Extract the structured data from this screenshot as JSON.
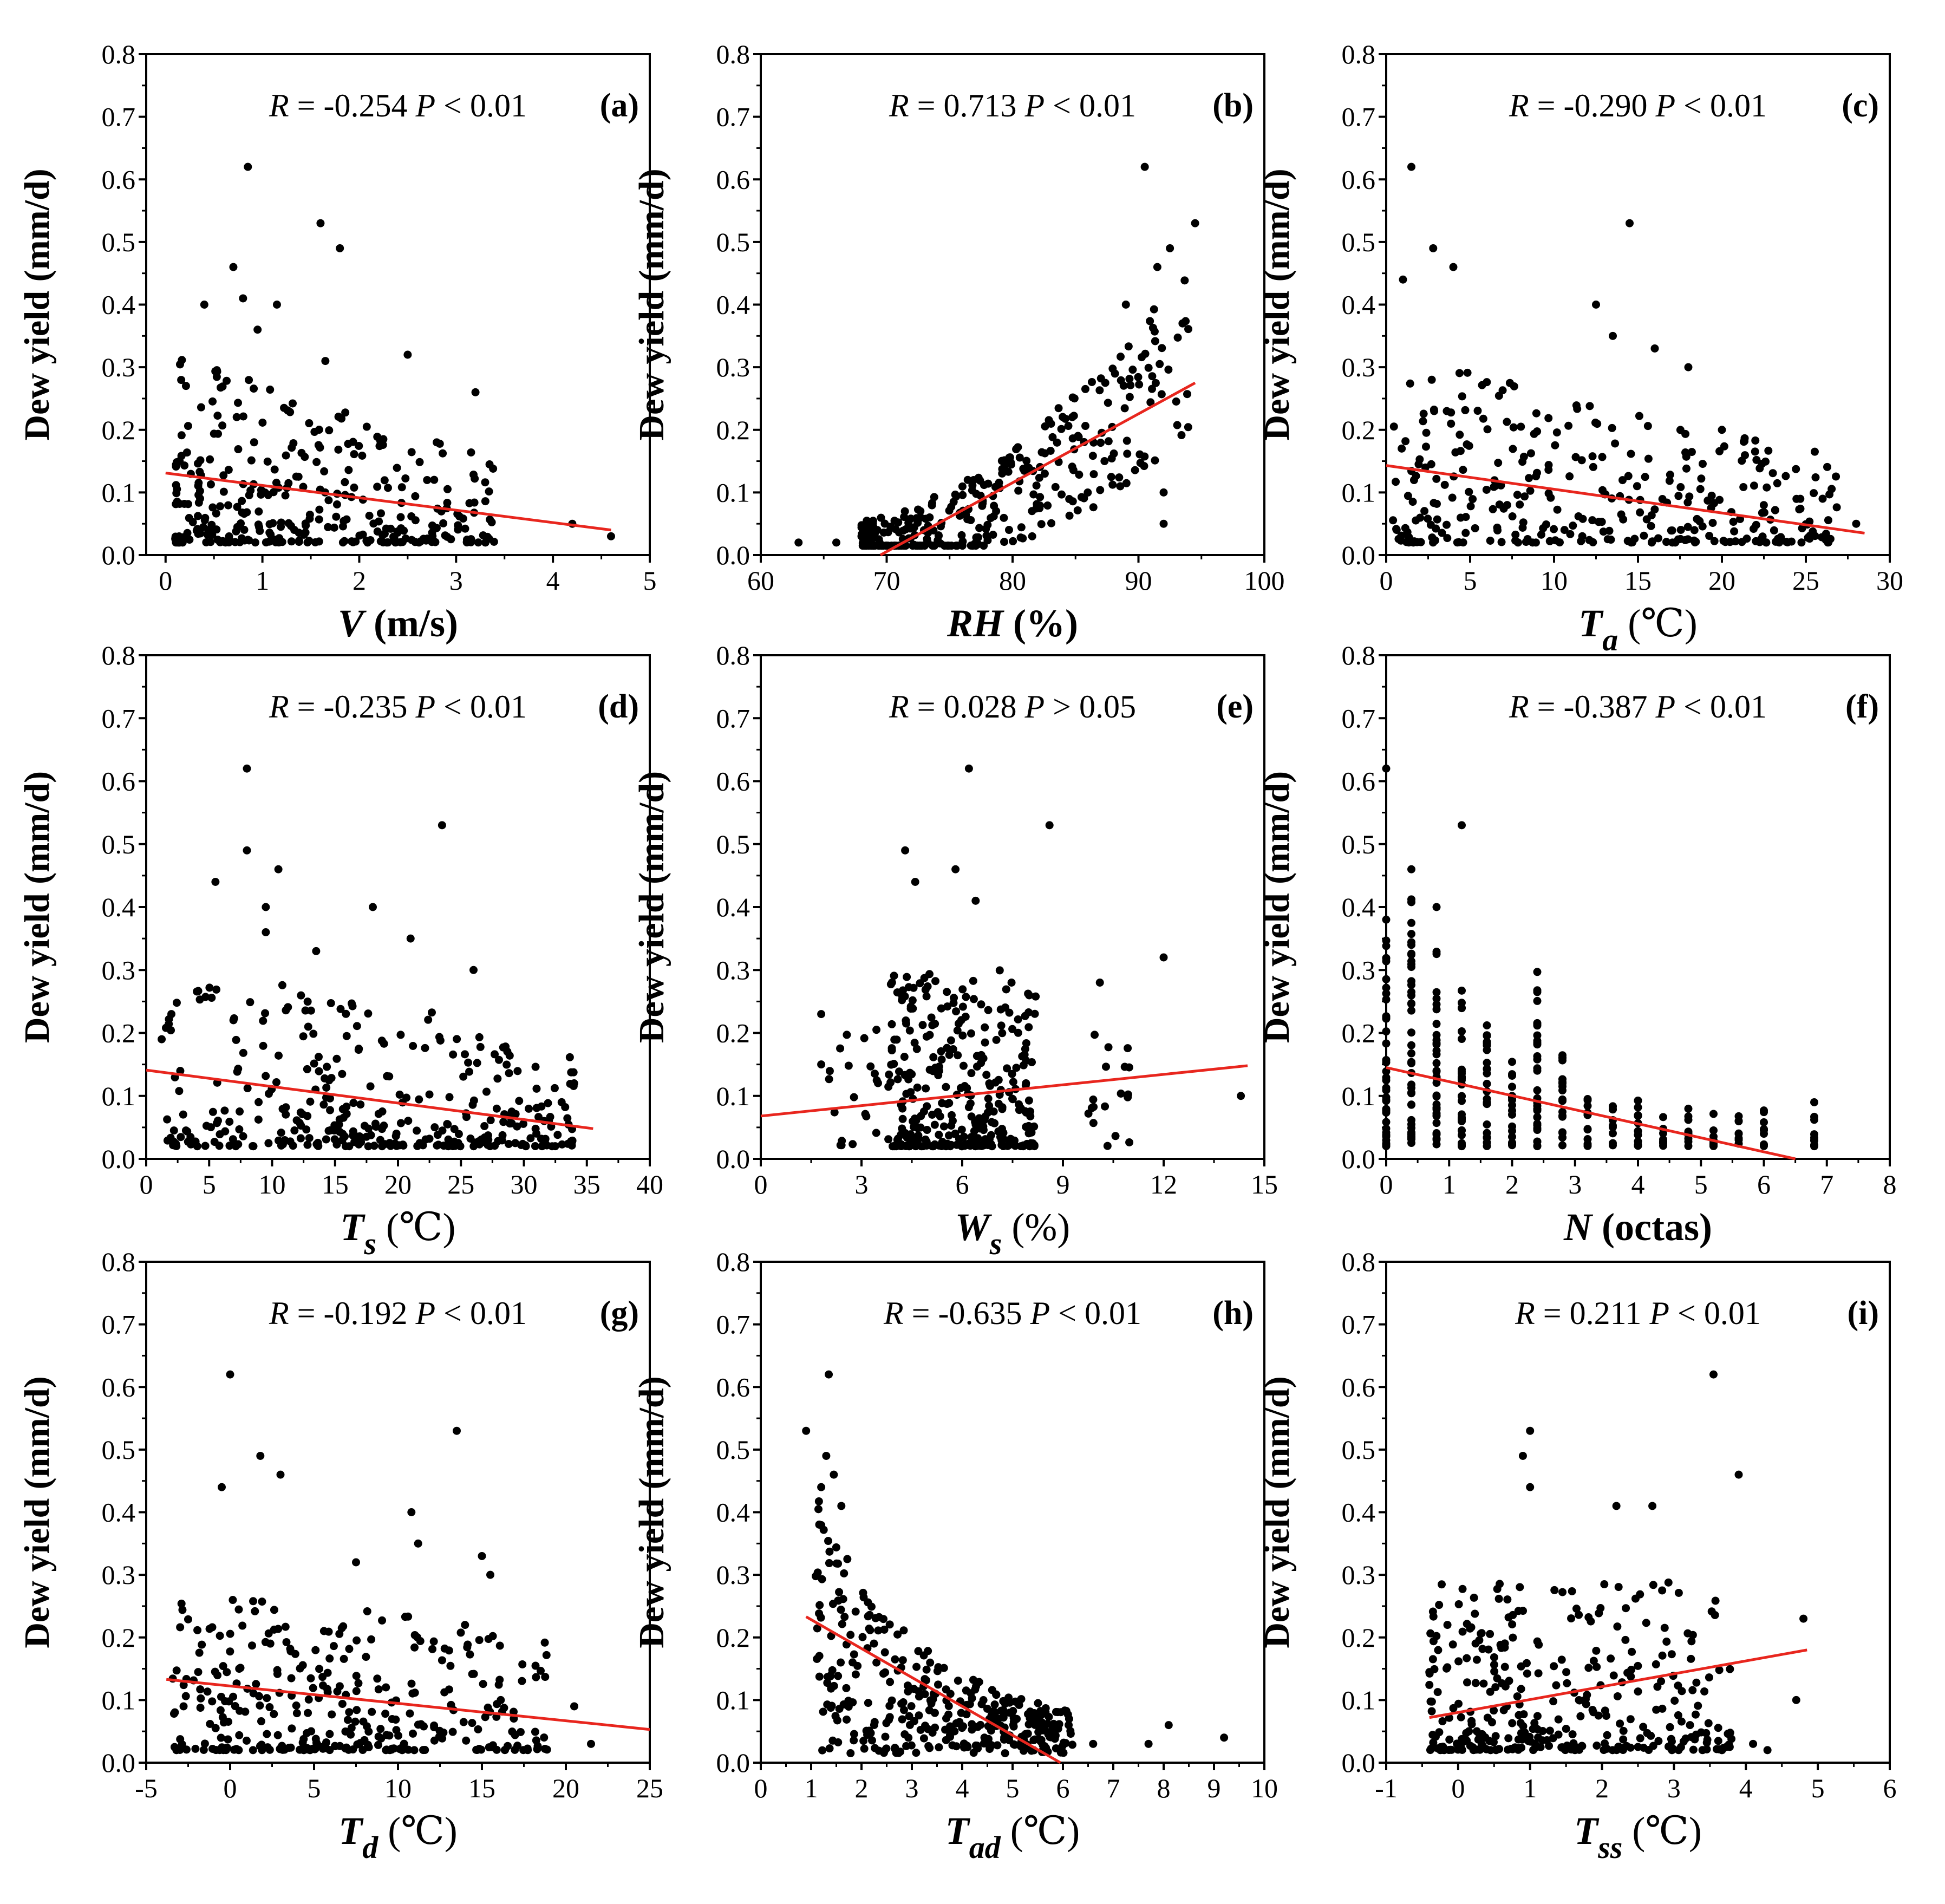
{
  "y_label": "Dew yield (mm/d)",
  "colors": {
    "points": "#000000",
    "trend": "#e8261e",
    "axis": "#000000"
  },
  "chart_data": [
    {
      "id": "a",
      "type": "scatter",
      "panel_label": "(a)",
      "stat_R": "R",
      "stat_eq": " = -0.254 ",
      "stat_P": "P",
      "stat_cond": " < 0.01",
      "xlabel": {
        "var": "V",
        "sub": "",
        "unit": " (m/s)"
      },
      "xlim": [
        -0.2,
        5
      ],
      "xticks": [
        0,
        1,
        2,
        3,
        4,
        5
      ],
      "ylim": [
        0,
        0.8
      ],
      "yticks": [
        0,
        0.1,
        0.2,
        0.3,
        0.4,
        0.5,
        0.6,
        0.7,
        0.8
      ],
      "trend": {
        "x0": 0,
        "y0": 0.131,
        "x1": 4.6,
        "y1": 0.04
      },
      "highlights": [
        [
          0.85,
          0.62
        ],
        [
          1.6,
          0.53
        ],
        [
          1.8,
          0.49
        ],
        [
          0.7,
          0.46
        ],
        [
          0.4,
          0.4
        ],
        [
          0.8,
          0.41
        ],
        [
          1.15,
          0.4
        ],
        [
          0.95,
          0.36
        ],
        [
          2.5,
          0.32
        ],
        [
          1.65,
          0.31
        ],
        [
          3.2,
          0.26
        ],
        [
          2.8,
          0.18
        ],
        [
          4.2,
          0.05
        ],
        [
          4.6,
          0.03
        ]
      ],
      "gen": {
        "n": 330,
        "xmin": 0.1,
        "xmax": 3.4,
        "xskew": 1.6,
        "ybase": 0.02,
        "ymaxBase": 0.3,
        "ymaxSlope": -0.05,
        "seed": 11
      }
    },
    {
      "id": "b",
      "type": "scatter",
      "panel_label": "(b)",
      "stat_R": "R",
      "stat_eq": " = 0.713 ",
      "stat_P": "P",
      "stat_cond": " < 0.01",
      "xlabel": {
        "var": "RH",
        "sub": "",
        "unit": " (%)"
      },
      "xlim": [
        60,
        100
      ],
      "xticks": [
        60,
        70,
        80,
        90,
        100
      ],
      "ylim": [
        0,
        0.8
      ],
      "yticks": [
        0,
        0.1,
        0.2,
        0.3,
        0.4,
        0.5,
        0.6,
        0.7,
        0.8
      ],
      "trend": {
        "x0": 69.5,
        "y0": 0.0,
        "x1": 94.5,
        "y1": 0.275
      },
      "highlights": [
        [
          90.5,
          0.62
        ],
        [
          94.5,
          0.53
        ],
        [
          92.5,
          0.49
        ],
        [
          91.5,
          0.46
        ],
        [
          93.5,
          0.37
        ],
        [
          89,
          0.4
        ],
        [
          63,
          0.02
        ],
        [
          66,
          0.02
        ],
        [
          68,
          0.03
        ],
        [
          92,
          0.05
        ],
        [
          92,
          0.1
        ]
      ],
      "gen": {
        "n": 330,
        "xmin": 68,
        "xmax": 94,
        "xskew": 1.3,
        "mode": "rh",
        "seed": 23
      }
    },
    {
      "id": "c",
      "type": "scatter",
      "panel_label": "(c)",
      "stat_R": "R",
      "stat_eq": " = -0.290 ",
      "stat_P": "P",
      "stat_cond": " < 0.01",
      "xlabel": {
        "var": "T",
        "sub": "a",
        "unit": " (℃)"
      },
      "xlim": [
        0,
        30
      ],
      "xticks": [
        0,
        5,
        10,
        15,
        20,
        25,
        30
      ],
      "ylim": [
        0,
        0.8
      ],
      "yticks": [
        0,
        0.1,
        0.2,
        0.3,
        0.4,
        0.5,
        0.6,
        0.7,
        0.8
      ],
      "trend": {
        "x0": 0,
        "y0": 0.143,
        "x1": 28.5,
        "y1": 0.035
      },
      "highlights": [
        [
          1.5,
          0.62
        ],
        [
          14.5,
          0.53
        ],
        [
          2.8,
          0.49
        ],
        [
          4,
          0.46
        ],
        [
          1,
          0.44
        ],
        [
          12.5,
          0.4
        ],
        [
          13.5,
          0.35
        ],
        [
          16,
          0.33
        ],
        [
          18,
          0.3
        ],
        [
          20,
          0.2
        ],
        [
          28,
          0.05
        ],
        [
          26,
          0.09
        ]
      ],
      "gen": {
        "n": 330,
        "xmin": 0.1,
        "xmax": 27,
        "xskew": 1.0,
        "ybase": 0.02,
        "ymaxBase": 0.3,
        "ymaxSlope": -0.006,
        "seed": 37
      }
    },
    {
      "id": "d",
      "type": "scatter",
      "panel_label": "(d)",
      "stat_R": "R",
      "stat_eq": " = -0.235 ",
      "stat_P": "P",
      "stat_cond": " < 0.01",
      "xlabel": {
        "var": "T",
        "sub": "s",
        "unit": " (℃)"
      },
      "xlim": [
        0,
        40
      ],
      "xticks": [
        0,
        5,
        10,
        15,
        20,
        25,
        30,
        35,
        40
      ],
      "ylim": [
        0,
        0.8
      ],
      "yticks": [
        0,
        0.1,
        0.2,
        0.3,
        0.4,
        0.5,
        0.6,
        0.7,
        0.8
      ],
      "trend": {
        "x0": 0,
        "y0": 0.141,
        "x1": 35.5,
        "y1": 0.048
      },
      "highlights": [
        [
          8,
          0.62
        ],
        [
          23.5,
          0.53
        ],
        [
          8,
          0.49
        ],
        [
          10.5,
          0.46
        ],
        [
          5.5,
          0.44
        ],
        [
          9.5,
          0.4
        ],
        [
          9.5,
          0.36
        ],
        [
          18,
          0.4
        ],
        [
          13.5,
          0.33
        ],
        [
          21,
          0.35
        ],
        [
          26,
          0.3
        ],
        [
          33,
          0.09
        ]
      ],
      "gen": {
        "n": 340,
        "xmin": 1,
        "xmax": 34,
        "xskew": 1.0,
        "ybase": 0.02,
        "ymaxBase": 0.3,
        "ymaxSlope": -0.004,
        "seed": 51
      }
    },
    {
      "id": "e",
      "type": "scatter",
      "panel_label": "(e)",
      "stat_R": "R",
      "stat_eq": " = 0.028 ",
      "stat_P": "P",
      "stat_cond": " > 0.05",
      "xlabel": {
        "var": "W",
        "sub": "s",
        "unit": " (%)"
      },
      "xlim": [
        0,
        15
      ],
      "xticks": [
        0,
        3,
        6,
        9,
        12,
        15
      ],
      "ylim": [
        0,
        0.8
      ],
      "yticks": [
        0,
        0.1,
        0.2,
        0.3,
        0.4,
        0.5,
        0.6,
        0.7,
        0.8
      ],
      "trend": {
        "x0": 0,
        "y0": 0.068,
        "x1": 14.5,
        "y1": 0.148
      },
      "highlights": [
        [
          6.2,
          0.62
        ],
        [
          8.6,
          0.53
        ],
        [
          4.3,
          0.49
        ],
        [
          5.8,
          0.46
        ],
        [
          4.6,
          0.44
        ],
        [
          6.4,
          0.41
        ],
        [
          10.1,
          0.28
        ],
        [
          12,
          0.32
        ],
        [
          14.3,
          0.1
        ],
        [
          1.8,
          0.23
        ],
        [
          1.8,
          0.15
        ]
      ],
      "gen": {
        "n": 330,
        "xmin": 3.8,
        "xmax": 8.2,
        "xskew": 1.0,
        "ybase": 0.02,
        "ymaxBase": 0.28,
        "ymaxSlope": 0.0,
        "extra": [
          [
            2,
            3.5,
            20
          ],
          [
            9.5,
            11,
            18
          ]
        ],
        "seed": 67
      }
    },
    {
      "id": "f",
      "type": "scatter",
      "panel_label": "(f)",
      "stat_R": "R",
      "stat_eq": " = -0.387 ",
      "stat_P": "P",
      "stat_cond": " < 0.01",
      "xlabel": {
        "var": "N",
        "sub": "",
        "unit": " (octas)"
      },
      "xlim": [
        0,
        8
      ],
      "xticks": [
        0,
        1,
        2,
        3,
        4,
        5,
        6,
        7,
        8
      ],
      "ylim": [
        0,
        0.8
      ],
      "yticks": [
        0,
        0.1,
        0.2,
        0.3,
        0.4,
        0.5,
        0.6,
        0.7,
        0.8
      ],
      "trend": {
        "x0": 0,
        "y0": 0.145,
        "x1": 6.5,
        "y1": 0.0
      },
      "highlights": [
        [
          0,
          0.62
        ],
        [
          1.2,
          0.53
        ],
        [
          0.4,
          0.46
        ],
        [
          0.8,
          0.4
        ],
        [
          0,
          0.38
        ]
      ],
      "gen": {
        "mode": "columns",
        "columns": [
          0,
          0.4,
          0.8,
          1.2,
          1.6,
          2.0,
          2.4,
          2.8,
          3.2,
          3.6,
          4.0,
          4.4,
          4.8,
          5.2,
          5.6,
          6.0,
          6.8
        ],
        "colmax": [
          0.36,
          0.42,
          0.33,
          0.28,
          0.22,
          0.17,
          0.3,
          0.19,
          0.1,
          0.09,
          0.1,
          0.08,
          0.09,
          0.08,
          0.07,
          0.08,
          0.09
        ],
        "seed": 79
      }
    },
    {
      "id": "g",
      "type": "scatter",
      "panel_label": "(g)",
      "stat_R": "R",
      "stat_eq": " = -0.192 ",
      "stat_P": "P",
      "stat_cond": " < 0.01",
      "xlabel": {
        "var": "T",
        "sub": "d",
        "unit": " (℃)"
      },
      "xlim": [
        -5,
        25
      ],
      "xticks": [
        -5,
        0,
        5,
        10,
        15,
        20,
        25
      ],
      "ylim": [
        0,
        0.8
      ],
      "yticks": [
        0,
        0.1,
        0.2,
        0.3,
        0.4,
        0.5,
        0.6,
        0.7,
        0.8
      ],
      "trend": {
        "x0": -3.8,
        "y0": 0.133,
        "x1": 25,
        "y1": 0.053
      },
      "highlights": [
        [
          0,
          0.62
        ],
        [
          13.5,
          0.53
        ],
        [
          1.8,
          0.49
        ],
        [
          3,
          0.46
        ],
        [
          -0.5,
          0.44
        ],
        [
          10.8,
          0.4
        ],
        [
          11.2,
          0.35
        ],
        [
          15,
          0.33
        ],
        [
          15.5,
          0.3
        ],
        [
          7.5,
          0.32
        ],
        [
          21.5,
          0.03
        ],
        [
          20.5,
          0.09
        ]
      ],
      "gen": {
        "n": 330,
        "xmin": -3.5,
        "xmax": 19,
        "xskew": 1.0,
        "ybase": 0.02,
        "ymaxBase": 0.27,
        "ymaxSlope": -0.004,
        "seed": 91
      }
    },
    {
      "id": "h",
      "type": "scatter",
      "panel_label": "(h)",
      "stat_R": "R",
      "stat_eq": " = -0.635 ",
      "stat_P": "P",
      "stat_cond": " < 0.01",
      "xlabel": {
        "var": "T",
        "sub": "ad",
        "unit": " (℃)"
      },
      "xlim": [
        0,
        10
      ],
      "xticks": [
        0,
        1,
        2,
        3,
        4,
        5,
        6,
        7,
        8,
        9,
        10
      ],
      "ylim": [
        0,
        0.8
      ],
      "yticks": [
        0,
        0.1,
        0.2,
        0.3,
        0.4,
        0.5,
        0.6,
        0.7,
        0.8
      ],
      "trend": {
        "x0": 0.9,
        "y0": 0.233,
        "x1": 5.95,
        "y1": 0.0
      },
      "highlights": [
        [
          1.35,
          0.62
        ],
        [
          0.9,
          0.53
        ],
        [
          1.3,
          0.49
        ],
        [
          1.45,
          0.46
        ],
        [
          1.2,
          0.44
        ],
        [
          1.6,
          0.41
        ],
        [
          8.1,
          0.06
        ],
        [
          9.2,
          0.04
        ],
        [
          7.7,
          0.03
        ],
        [
          6.6,
          0.03
        ]
      ],
      "gen": {
        "n": 360,
        "xmin": 1,
        "xmax": 6.2,
        "xskew": 1.0,
        "mode": "tad",
        "seed": 103
      }
    },
    {
      "id": "i",
      "type": "scatter",
      "panel_label": "(i)",
      "stat_R": "R",
      "stat_eq": " = 0.211 ",
      "stat_P": "P",
      "stat_cond": " < 0.01",
      "xlabel": {
        "var": "T",
        "sub": "ss",
        "unit": " (℃)"
      },
      "xlim": [
        -1,
        6
      ],
      "xticks": [
        -1,
        0,
        1,
        2,
        3,
        4,
        5,
        6
      ],
      "ylim": [
        0,
        0.8
      ],
      "yticks": [
        0,
        0.1,
        0.2,
        0.3,
        0.4,
        0.5,
        0.6,
        0.7,
        0.8
      ],
      "trend": {
        "x0": -0.4,
        "y0": 0.072,
        "x1": 4.85,
        "y1": 0.18
      },
      "highlights": [
        [
          3.55,
          0.62
        ],
        [
          1.0,
          0.53
        ],
        [
          0.9,
          0.49
        ],
        [
          3.9,
          0.46
        ],
        [
          1.0,
          0.44
        ],
        [
          2.7,
          0.41
        ],
        [
          2.2,
          0.41
        ],
        [
          4.8,
          0.23
        ],
        [
          4.7,
          0.1
        ],
        [
          4.3,
          0.02
        ],
        [
          4.1,
          0.03
        ]
      ],
      "gen": {
        "n": 340,
        "xmin": -0.4,
        "xmax": 3.8,
        "xskew": 1.3,
        "ybase": 0.02,
        "ymaxBase": 0.27,
        "ymaxSlope": 0.0,
        "seed": 127
      }
    }
  ]
}
